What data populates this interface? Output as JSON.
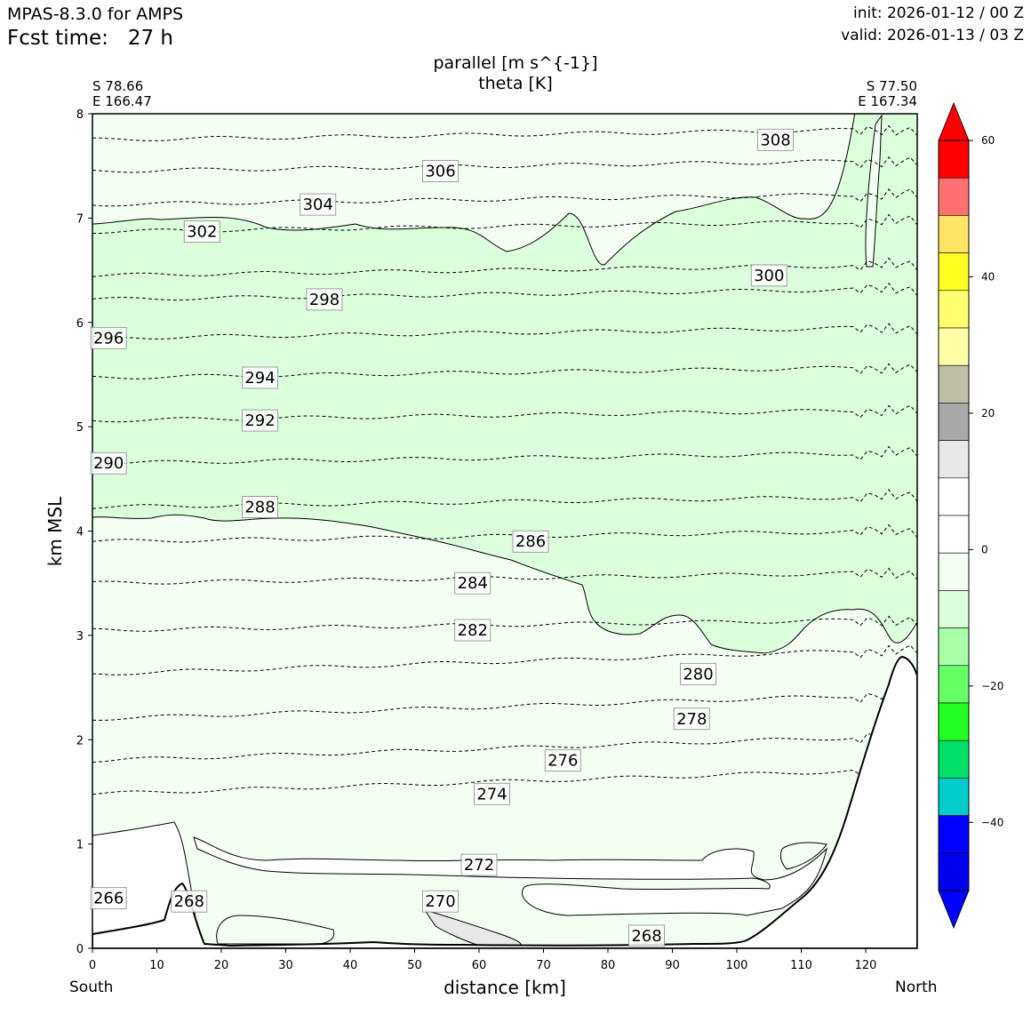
{
  "header": {
    "model": "MPAS-8.3.0 for AMPS",
    "fcst_time": "Fcst time:   27 h",
    "init": "init: 2026-01-12 / 00 Z",
    "valid": "valid: 2026-01-13 / 03 Z"
  },
  "plot_title": {
    "line1": "parallel [m s^{-1}]",
    "line2": "theta [K]"
  },
  "endpoints": {
    "left_lat": "S 78.66",
    "left_lon": "E 166.47",
    "right_lat": "S 77.50",
    "right_lon": "E 167.34",
    "left_label": "South",
    "right_label": "North"
  },
  "chart_data": {
    "type": "contour-cross-section",
    "xlabel": "distance [km]",
    "ylabel": "km MSL",
    "xlim": [
      0,
      128
    ],
    "ylim": [
      0,
      8
    ],
    "x_ticks": [
      "0",
      "10",
      "20",
      "30",
      "40",
      "50",
      "60",
      "70",
      "80",
      "90",
      "100",
      "110",
      "120"
    ],
    "y_ticks": [
      "0",
      "1",
      "2",
      "3",
      "4",
      "5",
      "6",
      "7",
      "8"
    ],
    "theta_contours": [
      {
        "label": "308",
        "x": 106,
        "y": 7.75
      },
      {
        "label": "306",
        "x": 54,
        "y": 7.45
      },
      {
        "label": "304",
        "x": 35,
        "y": 7.13
      },
      {
        "label": "302",
        "x": 17,
        "y": 6.87
      },
      {
        "label": "300",
        "x": 105,
        "y": 6.45
      },
      {
        "label": "298",
        "x": 36,
        "y": 6.22
      },
      {
        "label": "296",
        "x": 2.5,
        "y": 5.85
      },
      {
        "label": "294",
        "x": 26,
        "y": 5.47
      },
      {
        "label": "292",
        "x": 26,
        "y": 5.06
      },
      {
        "label": "290",
        "x": 2.5,
        "y": 4.65
      },
      {
        "label": "288",
        "x": 26,
        "y": 4.23
      },
      {
        "label": "286",
        "x": 68,
        "y": 3.9
      },
      {
        "label": "284",
        "x": 59,
        "y": 3.5
      },
      {
        "label": "282",
        "x": 59,
        "y": 3.05
      },
      {
        "label": "280",
        "x": 94,
        "y": 2.63
      },
      {
        "label": "278",
        "x": 93,
        "y": 2.2
      },
      {
        "label": "276",
        "x": 73,
        "y": 1.8
      },
      {
        "label": "274",
        "x": 62,
        "y": 1.48
      },
      {
        "label": "272",
        "x": 60,
        "y": 0.8
      },
      {
        "label": "270",
        "x": 54,
        "y": 0.45
      },
      {
        "label": "268",
        "x": 15,
        "y": 0.45
      },
      {
        "label": "268",
        "x": 86,
        "y": 0.12
      },
      {
        "label": "266",
        "x": 2.5,
        "y": 0.48
      }
    ],
    "colorbar": {
      "tick_labels": [
        "60",
        "40",
        "20",
        "0",
        "−20",
        "−40"
      ],
      "tick_values": [
        60,
        40,
        20,
        0,
        -20,
        -40
      ],
      "range": [
        -50,
        60
      ],
      "step": 5,
      "colors_top_to_bottom": [
        "#ff0000",
        "#ff7070",
        "#ffe566",
        "#ffff22",
        "#ffff70",
        "#ffffa8",
        "#bfbfa8",
        "#a8a8a8",
        "#e8e8e8",
        "#ffffff",
        "#ffffff",
        "#f2fff2",
        "#dcffdc",
        "#a8ffa8",
        "#66ff66",
        "#22ff22",
        "#00e066",
        "#00cccc",
        "#0000ff",
        "#0000ee"
      ],
      "extend_top": "#ff0000",
      "extend_bottom": "#0000ff"
    },
    "terrain": "Ross Ice Shelf / Ross Island topography rising to ~2.8 km at the north end"
  }
}
